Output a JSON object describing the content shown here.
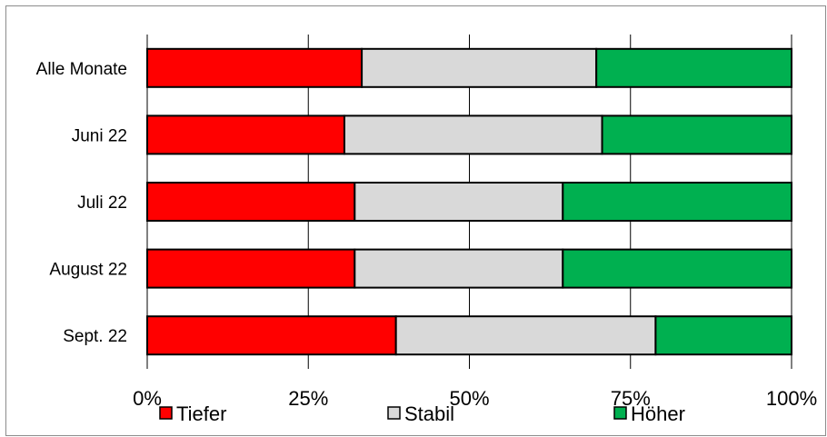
{
  "chart_data": {
    "type": "bar",
    "orientation": "horizontal",
    "stacked": true,
    "categories": [
      "Alle Monate",
      "Juni 22",
      "Juli 22",
      "August 22",
      "Sept. 22"
    ],
    "series": [
      {
        "name": "Tiefer",
        "color": "#ff0000",
        "values": [
          33.3,
          30.6,
          32.2,
          32.2,
          38.6
        ]
      },
      {
        "name": "Stabil",
        "color": "#d9d9d9",
        "values": [
          36.4,
          40.0,
          32.3,
          32.3,
          40.3
        ]
      },
      {
        "name": "Höher",
        "color": "#00b050",
        "values": [
          30.3,
          29.4,
          35.5,
          35.5,
          21.1
        ]
      }
    ],
    "xlim": [
      0,
      100
    ],
    "x_ticks": [
      "0%",
      "25%",
      "50%",
      "75%",
      "100%"
    ],
    "grid": true,
    "legend_position": "bottom"
  }
}
